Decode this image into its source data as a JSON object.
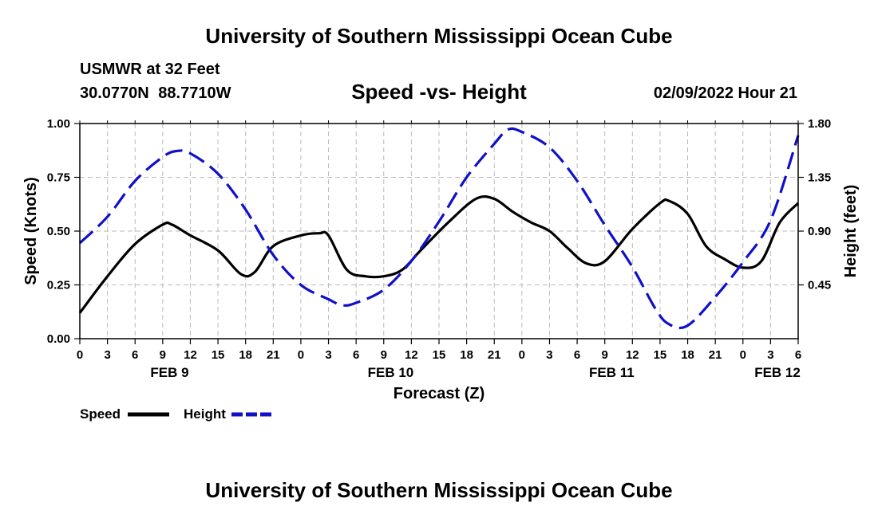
{
  "header": {
    "title": "University of Southern Mississippi Ocean Cube",
    "station_name": "USMWR at 32 Feet",
    "coordinates": "30.0770N  88.7710W",
    "chart_title": "Speed -vs- Height",
    "run_time": "02/09/2022 Hour 21"
  },
  "footer": {
    "title": "University of Southern Mississippi Ocean Cube"
  },
  "chart_data": {
    "type": "line",
    "title": "Speed -vs- Height",
    "xlabel": "Forecast (Z)",
    "ylabel": "Speed (Knots)",
    "y2label": "Height (feet)",
    "x_range_hours": [
      0,
      78
    ],
    "ylim": [
      0,
      1.0
    ],
    "y2lim": [
      0,
      1.8
    ],
    "y_ticks": [
      "0.00",
      "0.25",
      "0.50",
      "0.75",
      "1.00"
    ],
    "y2_ticks": [
      "0.45",
      "0.90",
      "1.35",
      "1.80"
    ],
    "x_tick_labels": [
      "0",
      "3",
      "6",
      "9",
      "12",
      "15",
      "18",
      "21",
      "0",
      "3",
      "6",
      "9",
      "12",
      "15",
      "18",
      "21",
      "0",
      "3",
      "6",
      "9",
      "12",
      "15",
      "18",
      "21",
      "0",
      "3",
      "6"
    ],
    "day_labels": [
      {
        "label": "FEB 9",
        "hour": 9.75
      },
      {
        "label": "FEB 10",
        "hour": 33.75
      },
      {
        "label": "FEB 11",
        "hour": 57.75
      },
      {
        "label": "FEB 12",
        "hour": 75.75
      }
    ],
    "grid": true,
    "legend_placement": "bottom-left",
    "series": [
      {
        "name": "Speed",
        "axis": "left",
        "color": "#000000",
        "dash": "solid",
        "x": [
          0,
          3,
          6,
          9,
          10,
          12,
          15,
          17.5,
          19,
          21,
          24,
          26,
          27,
          29,
          31,
          33,
          35,
          37,
          40,
          43,
          45,
          47,
          49,
          51,
          53,
          55,
          57,
          60,
          63,
          64,
          66,
          68,
          70,
          72,
          74,
          76,
          78
        ],
        "values": [
          0.12,
          0.29,
          0.44,
          0.53,
          0.53,
          0.48,
          0.41,
          0.3,
          0.31,
          0.43,
          0.48,
          0.49,
          0.48,
          0.32,
          0.29,
          0.29,
          0.32,
          0.41,
          0.54,
          0.65,
          0.65,
          0.59,
          0.54,
          0.5,
          0.42,
          0.35,
          0.36,
          0.51,
          0.63,
          0.64,
          0.58,
          0.43,
          0.37,
          0.33,
          0.36,
          0.54,
          0.63
        ]
      },
      {
        "name": "Height",
        "axis": "right",
        "color": "#1010c8",
        "dash": "dashed",
        "x": [
          0,
          3,
          6,
          9,
          10.5,
          12,
          15,
          18,
          21,
          24,
          27,
          28.5,
          30,
          33,
          36,
          39,
          42,
          45,
          46.5,
          48,
          51,
          54,
          57,
          60,
          62.5,
          64,
          66,
          69,
          72,
          75,
          78
        ],
        "values": [
          0.8,
          1.02,
          1.32,
          1.52,
          1.57,
          1.55,
          1.38,
          1.08,
          0.7,
          0.45,
          0.33,
          0.28,
          0.3,
          0.41,
          0.65,
          0.98,
          1.35,
          1.63,
          1.75,
          1.73,
          1.6,
          1.32,
          0.95,
          0.6,
          0.25,
          0.12,
          0.11,
          0.35,
          0.64,
          0.99,
          1.7
        ]
      }
    ]
  }
}
